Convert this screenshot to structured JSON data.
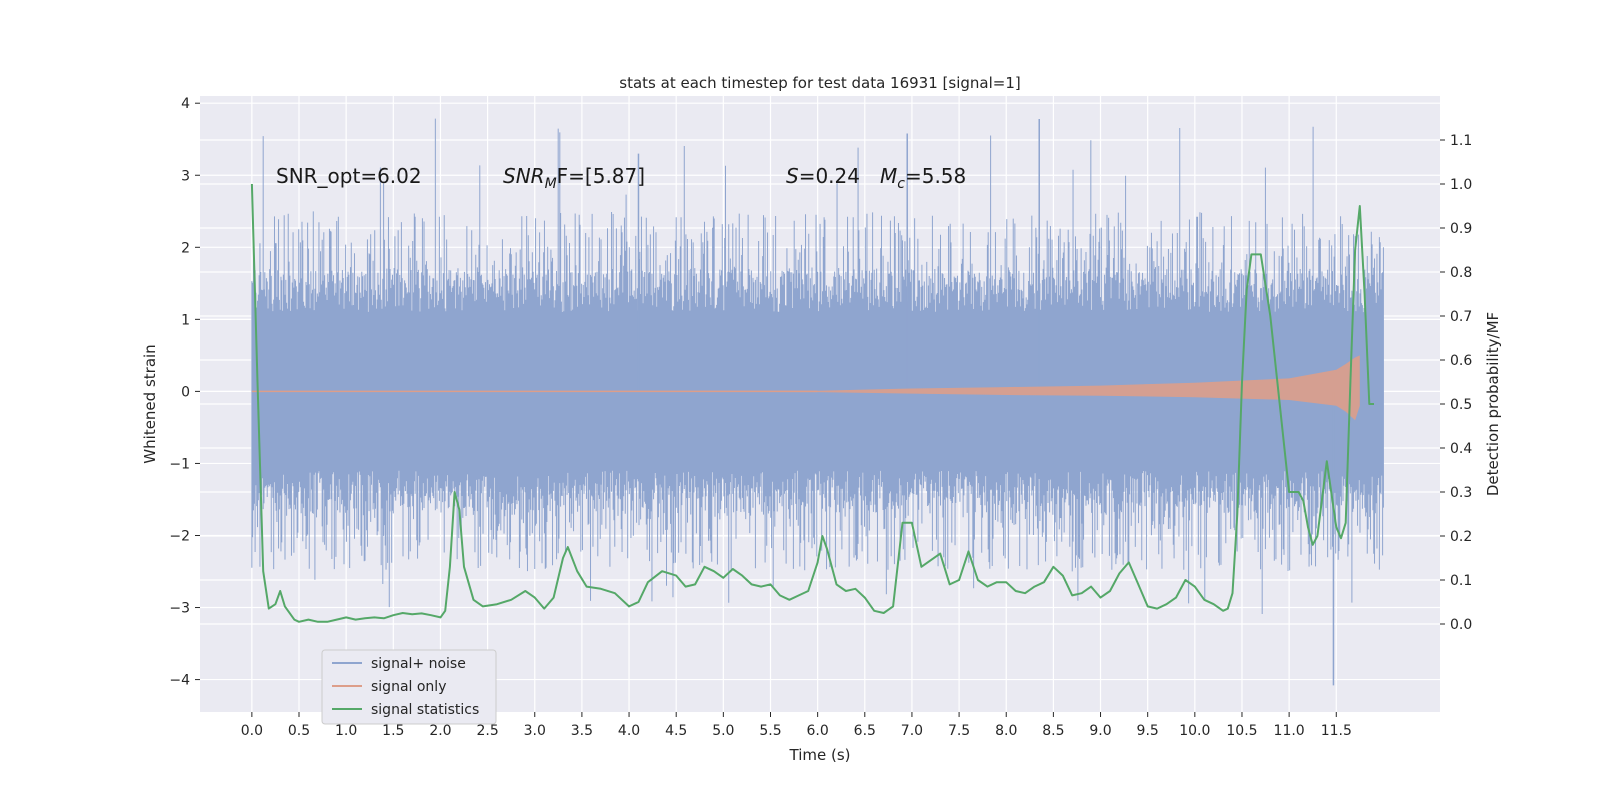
{
  "chart_data": {
    "type": "line",
    "title": "stats at each timestep for test data 16931 [signal=1]",
    "xlabel": "Time (s)",
    "ylabel": "Whitened strain",
    "ylabel_right": "Detection probability/MF",
    "xlim": [
      -0.55,
      12.6
    ],
    "ylim": [
      -4.45,
      4.1
    ],
    "ylim_right": [
      -0.2,
      1.2
    ],
    "x_ticks": [
      "0.0",
      "0.5",
      "1.0",
      "1.5",
      "2.0",
      "2.5",
      "3.0",
      "3.5",
      "4.0",
      "4.5",
      "5.0",
      "5.5",
      "6.0",
      "6.5",
      "7.0",
      "7.5",
      "8.0",
      "8.5",
      "9.0",
      "9.5",
      "10.0",
      "10.5",
      "11.0",
      "11.5"
    ],
    "y_ticks": [
      "4",
      "3",
      "2",
      "1",
      "0",
      "−1",
      "−2",
      "−3",
      "−4"
    ],
    "y_ticks_right": [
      "1.1",
      "1.0",
      "0.9",
      "0.8",
      "0.7",
      "0.6",
      "0.5",
      "0.4",
      "0.3",
      "0.2",
      "0.1",
      "0.0"
    ],
    "grid": true,
    "legend_position": "lower-left",
    "annotations": {
      "snr_opt": "SNR_opt=6.02",
      "snr_mf_sym": "SNR",
      "snr_mf_sub": "M",
      "snr_mf_rest": "F=[5.87]",
      "spin_sym": "S",
      "spin_rest": "=0.24",
      "mc_sym": "M",
      "mc_sub": "c",
      "mc_rest": "=5.58"
    },
    "series": [
      {
        "name": "signal+ noise",
        "color": "#8fa5cf",
        "axis": "left",
        "t_range": [
          0.0,
          12.0
        ],
        "envelope": "noise, |strain| mostly within 1.1, spikes to about 2.5 and outliers up to 3.8"
      },
      {
        "name": "signal only",
        "color": "#dd9e8a",
        "axis": "left",
        "t_range": [
          0.0,
          11.75
        ],
        "envelope_pos": [
          [
            0,
            0.0
          ],
          [
            6.0,
            0.01
          ],
          [
            7.0,
            0.04
          ],
          [
            8.0,
            0.06
          ],
          [
            9.0,
            0.08
          ],
          [
            10.0,
            0.12
          ],
          [
            11.0,
            0.18
          ],
          [
            11.5,
            0.3
          ],
          [
            11.6,
            0.38
          ],
          [
            11.7,
            0.47
          ],
          [
            11.75,
            0.5
          ]
        ],
        "envelope_neg": [
          [
            0,
            0.0
          ],
          [
            6.0,
            -0.01
          ],
          [
            7.0,
            -0.03
          ],
          [
            8.0,
            -0.05
          ],
          [
            9.0,
            -0.06
          ],
          [
            10.0,
            -0.08
          ],
          [
            11.0,
            -0.12
          ],
          [
            11.5,
            -0.2
          ],
          [
            11.6,
            -0.28
          ],
          [
            11.7,
            -0.4
          ],
          [
            11.75,
            -0.2
          ]
        ]
      },
      {
        "name": "signal statistics",
        "color": "#55a868",
        "axis": "right",
        "points": [
          [
            0.0,
            1.0
          ],
          [
            0.06,
            0.55
          ],
          [
            0.12,
            0.12
          ],
          [
            0.18,
            0.035
          ],
          [
            0.25,
            0.045
          ],
          [
            0.3,
            0.075
          ],
          [
            0.35,
            0.04
          ],
          [
            0.45,
            0.01
          ],
          [
            0.5,
            0.005
          ],
          [
            0.6,
            0.01
          ],
          [
            0.7,
            0.005
          ],
          [
            0.8,
            0.005
          ],
          [
            0.9,
            0.01
          ],
          [
            1.0,
            0.015
          ],
          [
            1.1,
            0.01
          ],
          [
            1.2,
            0.013
          ],
          [
            1.3,
            0.015
          ],
          [
            1.4,
            0.013
          ],
          [
            1.5,
            0.02
          ],
          [
            1.6,
            0.025
          ],
          [
            1.7,
            0.022
          ],
          [
            1.8,
            0.024
          ],
          [
            1.9,
            0.02
          ],
          [
            2.0,
            0.015
          ],
          [
            2.05,
            0.03
          ],
          [
            2.1,
            0.13
          ],
          [
            2.15,
            0.3
          ],
          [
            2.2,
            0.26
          ],
          [
            2.25,
            0.13
          ],
          [
            2.35,
            0.055
          ],
          [
            2.45,
            0.04
          ],
          [
            2.6,
            0.045
          ],
          [
            2.75,
            0.055
          ],
          [
            2.9,
            0.075
          ],
          [
            3.0,
            0.06
          ],
          [
            3.1,
            0.035
          ],
          [
            3.2,
            0.06
          ],
          [
            3.3,
            0.15
          ],
          [
            3.35,
            0.175
          ],
          [
            3.45,
            0.12
          ],
          [
            3.55,
            0.085
          ],
          [
            3.7,
            0.08
          ],
          [
            3.85,
            0.07
          ],
          [
            4.0,
            0.04
          ],
          [
            4.1,
            0.05
          ],
          [
            4.2,
            0.095
          ],
          [
            4.35,
            0.12
          ],
          [
            4.5,
            0.11
          ],
          [
            4.6,
            0.085
          ],
          [
            4.7,
            0.09
          ],
          [
            4.8,
            0.13
          ],
          [
            4.9,
            0.12
          ],
          [
            5.0,
            0.105
          ],
          [
            5.1,
            0.125
          ],
          [
            5.2,
            0.11
          ],
          [
            5.3,
            0.09
          ],
          [
            5.4,
            0.085
          ],
          [
            5.5,
            0.09
          ],
          [
            5.6,
            0.065
          ],
          [
            5.7,
            0.055
          ],
          [
            5.8,
            0.065
          ],
          [
            5.9,
            0.075
          ],
          [
            6.0,
            0.14
          ],
          [
            6.05,
            0.2
          ],
          [
            6.1,
            0.17
          ],
          [
            6.2,
            0.09
          ],
          [
            6.3,
            0.075
          ],
          [
            6.4,
            0.08
          ],
          [
            6.5,
            0.06
          ],
          [
            6.6,
            0.03
          ],
          [
            6.7,
            0.025
          ],
          [
            6.8,
            0.04
          ],
          [
            6.9,
            0.23
          ],
          [
            7.0,
            0.23
          ],
          [
            7.1,
            0.13
          ],
          [
            7.2,
            0.145
          ],
          [
            7.3,
            0.16
          ],
          [
            7.4,
            0.09
          ],
          [
            7.5,
            0.1
          ],
          [
            7.6,
            0.165
          ],
          [
            7.7,
            0.1
          ],
          [
            7.8,
            0.085
          ],
          [
            7.9,
            0.095
          ],
          [
            8.0,
            0.095
          ],
          [
            8.1,
            0.075
          ],
          [
            8.2,
            0.07
          ],
          [
            8.3,
            0.085
          ],
          [
            8.4,
            0.095
          ],
          [
            8.5,
            0.13
          ],
          [
            8.6,
            0.11
          ],
          [
            8.7,
            0.065
          ],
          [
            8.8,
            0.07
          ],
          [
            8.9,
            0.085
          ],
          [
            9.0,
            0.06
          ],
          [
            9.1,
            0.075
          ],
          [
            9.2,
            0.115
          ],
          [
            9.3,
            0.14
          ],
          [
            9.4,
            0.09
          ],
          [
            9.5,
            0.04
          ],
          [
            9.6,
            0.035
          ],
          [
            9.7,
            0.045
          ],
          [
            9.8,
            0.06
          ],
          [
            9.9,
            0.1
          ],
          [
            10.0,
            0.085
          ],
          [
            10.1,
            0.055
          ],
          [
            10.2,
            0.045
          ],
          [
            10.3,
            0.03
          ],
          [
            10.35,
            0.035
          ],
          [
            10.4,
            0.07
          ],
          [
            10.45,
            0.25
          ],
          [
            10.5,
            0.55
          ],
          [
            10.55,
            0.76
          ],
          [
            10.6,
            0.84
          ],
          [
            10.7,
            0.84
          ],
          [
            10.8,
            0.7
          ],
          [
            10.9,
            0.5
          ],
          [
            10.95,
            0.4
          ],
          [
            11.0,
            0.3
          ],
          [
            11.1,
            0.3
          ],
          [
            11.15,
            0.28
          ],
          [
            11.2,
            0.22
          ],
          [
            11.25,
            0.18
          ],
          [
            11.3,
            0.2
          ],
          [
            11.4,
            0.37
          ],
          [
            11.5,
            0.22
          ],
          [
            11.55,
            0.195
          ],
          [
            11.6,
            0.23
          ],
          [
            11.65,
            0.55
          ],
          [
            11.7,
            0.85
          ],
          [
            11.75,
            0.95
          ],
          [
            11.8,
            0.75
          ],
          [
            11.85,
            0.5
          ],
          [
            11.9,
            0.5
          ]
        ]
      }
    ]
  }
}
